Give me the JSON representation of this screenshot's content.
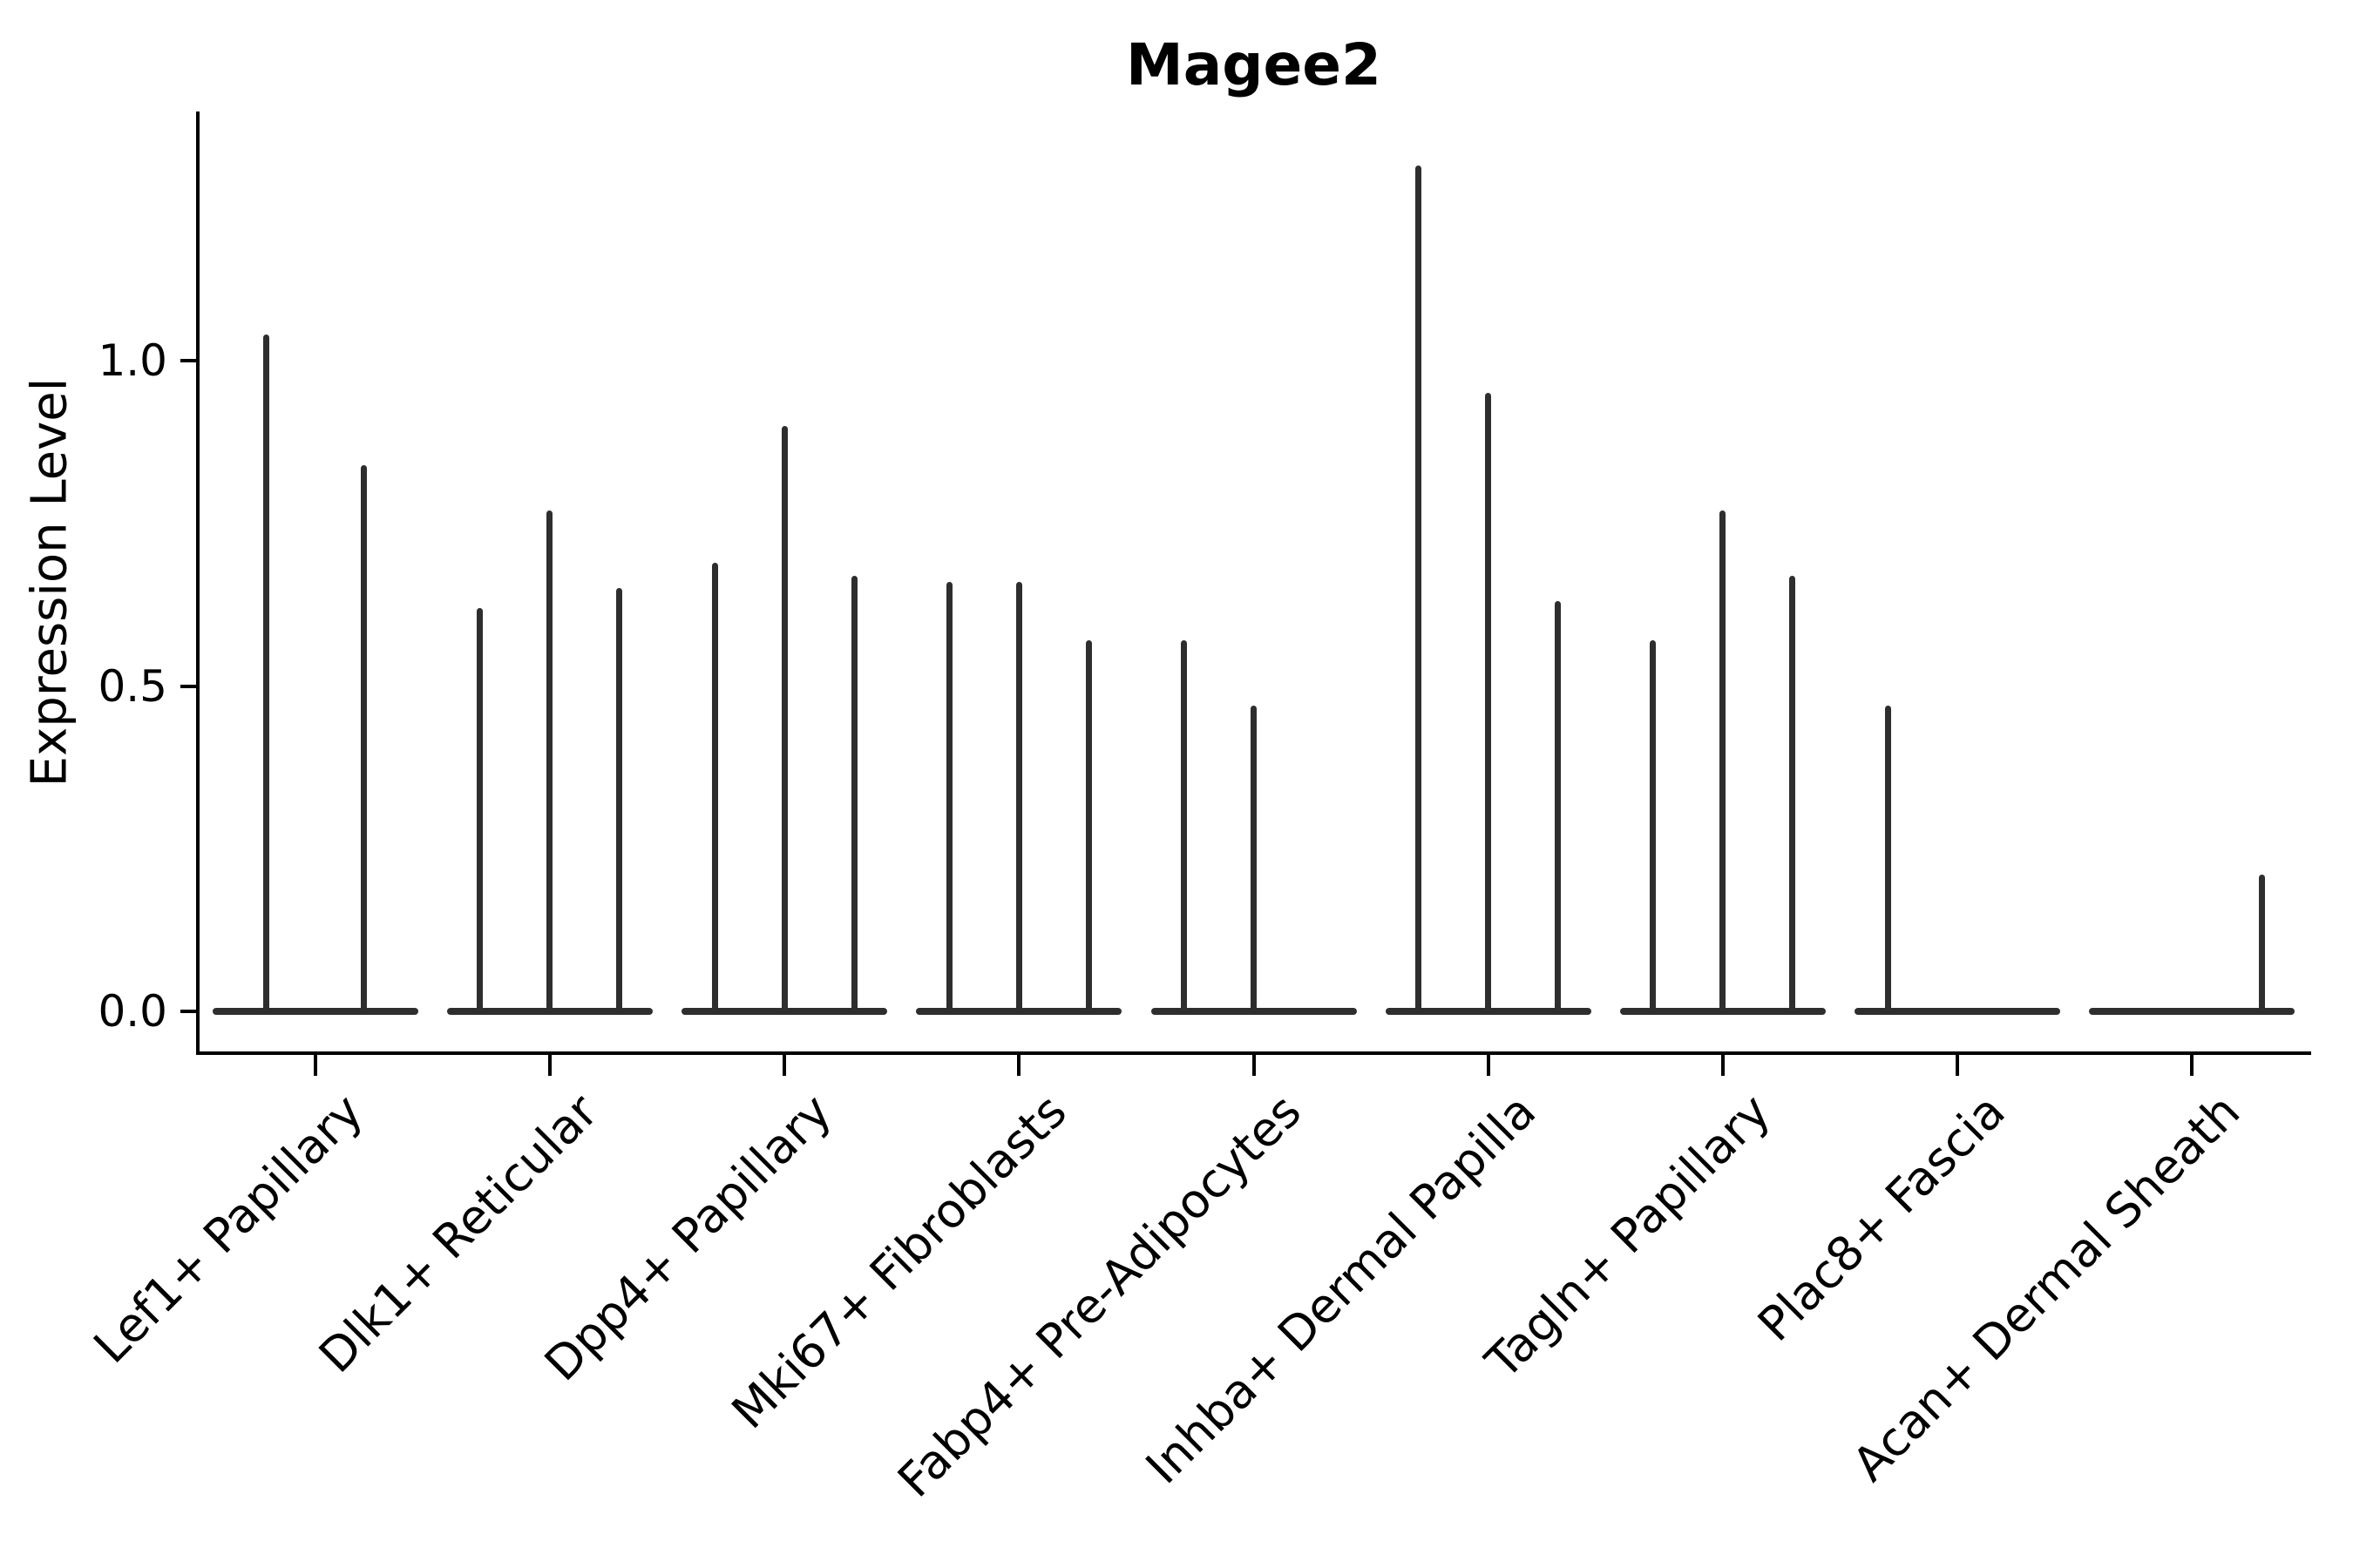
{
  "title": "Magee2",
  "ylabel": "Expression Level",
  "colors": {
    "text": "#000000",
    "spine": "#000000",
    "violin": "#2e2e2e"
  },
  "chart_data": {
    "type": "violin",
    "title": "Magee2",
    "xlabel": "",
    "ylabel": "Expression Level",
    "ylim": [
      -0.06,
      1.38
    ],
    "grid": false,
    "legend": "none",
    "yticks": [
      {
        "value": 0.0,
        "label": "0.0"
      },
      {
        "value": 0.5,
        "label": "0.5"
      },
      {
        "value": 1.0,
        "label": "1.0"
      }
    ],
    "description": "Thin spike-shaped violins; each category holds sub-violins whose flat bases sit at expression 0 and whose spikes rise to the max expression value. max = 0 means a flat violin with no spike.",
    "categories": [
      {
        "label": "Lef1+ Papillary",
        "violins": [
          {
            "offset": -56,
            "max": 1.04
          },
          {
            "offset": 56,
            "max": 0.84
          }
        ]
      },
      {
        "label": "Dlk1+ Reticular",
        "violins": [
          {
            "offset": -80,
            "max": 0.62
          },
          {
            "offset": 0,
            "max": 0.77
          },
          {
            "offset": 80,
            "max": 0.65
          }
        ]
      },
      {
        "label": "Dpp4+ Papillary",
        "violins": [
          {
            "offset": -80,
            "max": 0.69
          },
          {
            "offset": 0,
            "max": 0.9
          },
          {
            "offset": 80,
            "max": 0.67
          }
        ]
      },
      {
        "label": "Mki67+ Fibroblasts",
        "violins": [
          {
            "offset": -80,
            "max": 0.66
          },
          {
            "offset": 0,
            "max": 0.66
          },
          {
            "offset": 80,
            "max": 0.57
          }
        ]
      },
      {
        "label": "Fabp4+ Pre-Adipocytes",
        "violins": [
          {
            "offset": -80,
            "max": 0.57
          },
          {
            "offset": 0,
            "max": 0.47
          },
          {
            "offset": 80,
            "max": 0.0
          }
        ]
      },
      {
        "label": "Inhba+ Dermal Papilla",
        "violins": [
          {
            "offset": -80,
            "max": 1.3
          },
          {
            "offset": 0,
            "max": 0.95
          },
          {
            "offset": 80,
            "max": 0.63
          }
        ]
      },
      {
        "label": "Tagln+ Papillary",
        "violins": [
          {
            "offset": -80,
            "max": 0.57
          },
          {
            "offset": 0,
            "max": 0.77
          },
          {
            "offset": 80,
            "max": 0.67
          }
        ]
      },
      {
        "label": "Plac8+ Fascia",
        "violins": [
          {
            "offset": -80,
            "max": 0.47
          },
          {
            "offset": 0,
            "max": 0.0
          },
          {
            "offset": 80,
            "max": 0.0
          }
        ]
      },
      {
        "label": "Acan+ Dermal Sheath",
        "violins": [
          {
            "offset": -80,
            "max": 0.0
          },
          {
            "offset": 0,
            "max": 0.0
          },
          {
            "offset": 80,
            "max": 0.21
          }
        ]
      }
    ]
  }
}
